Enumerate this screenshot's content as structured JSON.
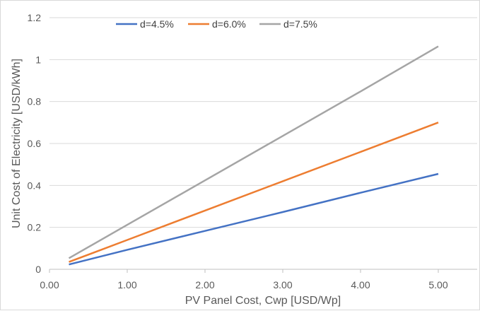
{
  "chart_data": {
    "type": "line",
    "title": "",
    "xlabel": "PV Panel Cost, Cwp [USD/Wp]",
    "ylabel": "Unit Cost of Electricity [USD/kWh]",
    "xlim": [
      0,
      5.5
    ],
    "ylim": [
      0,
      1.2
    ],
    "x_ticks": [
      "0.00",
      "1.00",
      "2.00",
      "3.00",
      "4.00",
      "5.00"
    ],
    "y_ticks": [
      "0",
      "0.2",
      "0.4",
      "0.6",
      "0.8",
      "1",
      "1.2"
    ],
    "grid": "horizontal",
    "legend_position": "top",
    "x": [
      0.25,
      1.0,
      2.0,
      3.0,
      4.0,
      5.0
    ],
    "series": [
      {
        "name": "d=4.5%",
        "color": "#4472c4",
        "values": [
          0.023,
          0.093,
          0.183,
          0.273,
          0.365,
          0.455
        ]
      },
      {
        "name": "d=6.0%",
        "color": "#ed7d31",
        "values": [
          0.035,
          0.14,
          0.28,
          0.42,
          0.56,
          0.7
        ]
      },
      {
        "name": "d=7.5%",
        "color": "#a5a5a5",
        "values": [
          0.053,
          0.212,
          0.424,
          0.636,
          0.848,
          1.063
        ]
      }
    ]
  }
}
